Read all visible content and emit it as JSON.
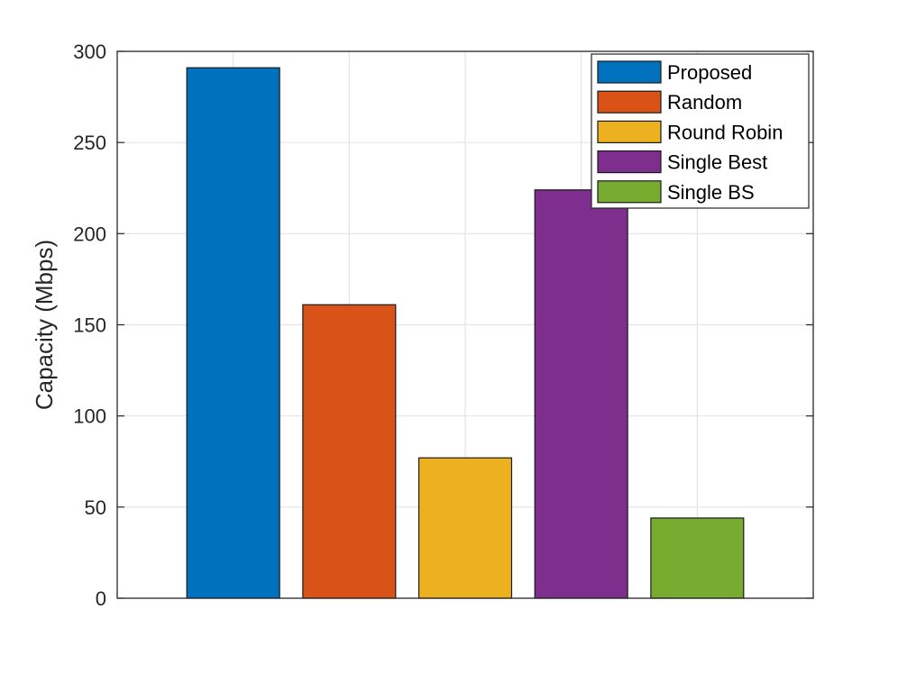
{
  "chart_data": {
    "type": "bar",
    "title": "",
    "xlabel": "",
    "ylabel": "Capacity (Mbps)",
    "ylim": [
      0,
      300
    ],
    "yticks": [
      0,
      50,
      100,
      150,
      200,
      250,
      300
    ],
    "grid": true,
    "legend_placement": "top-right",
    "series": [
      {
        "name": "Proposed",
        "value": 291,
        "color": "#0072BD"
      },
      {
        "name": "Random",
        "value": 161,
        "color": "#D95319"
      },
      {
        "name": "Round Robin",
        "value": 77,
        "color": "#EDB120"
      },
      {
        "name": "Single Best",
        "value": 224,
        "color": "#7E2F8E"
      },
      {
        "name": "Single BS",
        "value": 44,
        "color": "#77AC30"
      }
    ]
  }
}
